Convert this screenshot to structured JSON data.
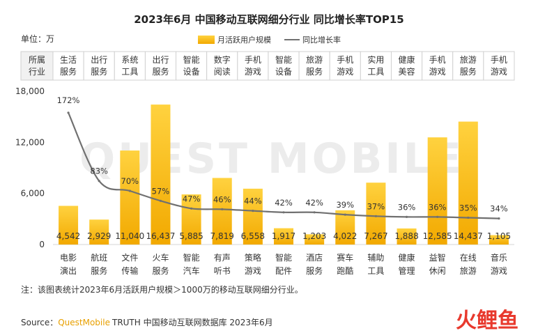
{
  "title": "2023年6月 中国移动互联网细分行业 同比增长率TOP15",
  "unit_label": "单位：万",
  "legend": {
    "bar": "月活跃用户规模",
    "line": "同比增长率"
  },
  "industry_header": "所属行业",
  "watermark": "QUEST MOBILE",
  "note": "注：该图表统计2023年6月活跃用户规模＞1000万的移动互联网细分行业。",
  "source": {
    "prefix": "Source：",
    "brand": "QuestMobile",
    "text": "TRUTH 中国移动互联网数据库 2023年6月"
  },
  "logo_text": "火鲤鱼",
  "colors": {
    "bar_top": "#ffd23f",
    "bar_bottom": "#f2a900",
    "line": "#707070",
    "header_fill": "#f1f1f1",
    "grid": "#e3e3e3",
    "brand": "#e8a000",
    "logo": "#e8392d"
  },
  "chart_data": {
    "type": "bar+line",
    "categories": [
      "电影演出",
      "航班服务",
      "文件传输",
      "火车服务",
      "智能汽车",
      "有声听书",
      "策略游戏",
      "智能配件",
      "酒店服务",
      "赛车跑酷",
      "辅助工具",
      "健康管理",
      "益智休闲",
      "在线旅游",
      "音乐游戏"
    ],
    "industries": [
      "生活服务",
      "出行服务",
      "系统工具",
      "出行服务",
      "智能设备",
      "数字阅读",
      "手机游戏",
      "智能设备",
      "旅游服务",
      "手机游戏",
      "实用工具",
      "健康美容",
      "手机游戏",
      "旅游服务",
      "手机游戏"
    ],
    "series": [
      {
        "name": "月活跃用户规模",
        "type": "bar",
        "values": [
          4542,
          2929,
          11040,
          16437,
          5885,
          7819,
          6558,
          1917,
          1203,
          4022,
          7267,
          1888,
          12585,
          14437,
          1105
        ]
      },
      {
        "name": "同比增长率",
        "type": "line",
        "values": [
          172,
          83,
          70,
          57,
          47,
          46,
          44,
          42,
          42,
          39,
          37,
          36,
          36,
          35,
          34
        ]
      }
    ],
    "value_labels": [
      "4,542",
      "2,929",
      "11,040",
      "16,437",
      "5,885",
      "7,819",
      "6,558",
      "1,917",
      "1,203",
      "4,022",
      "7,267",
      "1,888",
      "12,585",
      "14,437",
      "1,105"
    ],
    "pct_labels": [
      "172%",
      "83%",
      "70%",
      "57%",
      "47%",
      "46%",
      "44%",
      "42%",
      "42%",
      "39%",
      "37%",
      "36%",
      "36%",
      "35%",
      "34%"
    ],
    "y_ticks": [
      0,
      6000,
      12000,
      18000
    ],
    "y_tick_labels": [
      "0",
      "6,000",
      "12,000",
      "18,000"
    ],
    "ylim": [
      0,
      18000
    ],
    "y2lim": [
      0,
      200
    ],
    "grid": false,
    "legend_position": "top-center"
  }
}
